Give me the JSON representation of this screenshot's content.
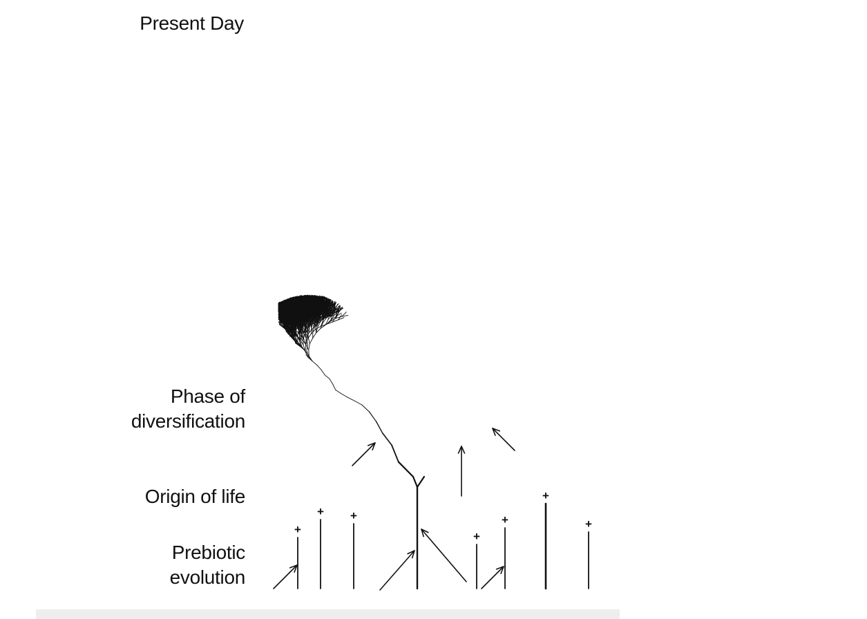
{
  "figure": {
    "labels": {
      "present_day": "Present Day",
      "phase_line1": "Phase of",
      "phase_line2": "diversification",
      "origin": "Origin of life",
      "prebiotic_line1": "Prebiotic",
      "prebiotic_line2": "evolution"
    },
    "extinction_marker": "+",
    "colors": {
      "ink": "#111111",
      "background": "#ffffff",
      "footer": "#eeeeee"
    }
  }
}
